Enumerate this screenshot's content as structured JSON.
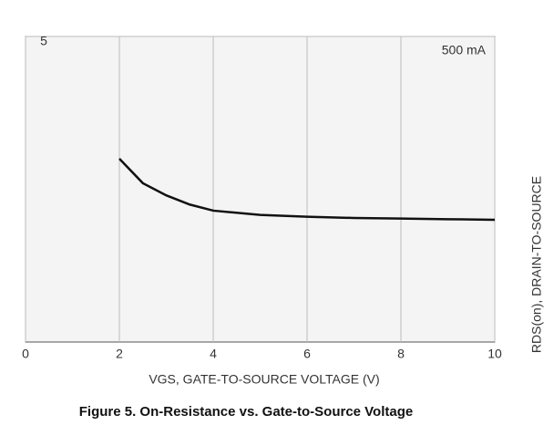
{
  "chart_data": {
    "type": "line",
    "title": "Figure 5. On-Resistance vs. Gate-to-Source Voltage",
    "x_label": "VGS, GATE-TO-SOURCE VOLTAGE (V)",
    "y_label": "RDS(on), DRAIN-TO-SOURCE",
    "x": [
      2,
      2.5,
      3,
      3.5,
      4,
      5,
      6,
      7,
      8,
      9,
      10
    ],
    "series": [
      {
        "name": "500 mA",
        "color": "#111111",
        "values": [
          3.0,
          2.6,
          2.4,
          2.25,
          2.15,
          2.08,
          2.05,
          2.03,
          2.02,
          2.01,
          2.0
        ]
      }
    ],
    "xlim": [
      0,
      10
    ],
    "xticks": [
      0,
      2,
      4,
      6,
      8,
      10
    ],
    "ylim": [
      0,
      5
    ],
    "yticks": [
      5
    ],
    "grid": true
  }
}
